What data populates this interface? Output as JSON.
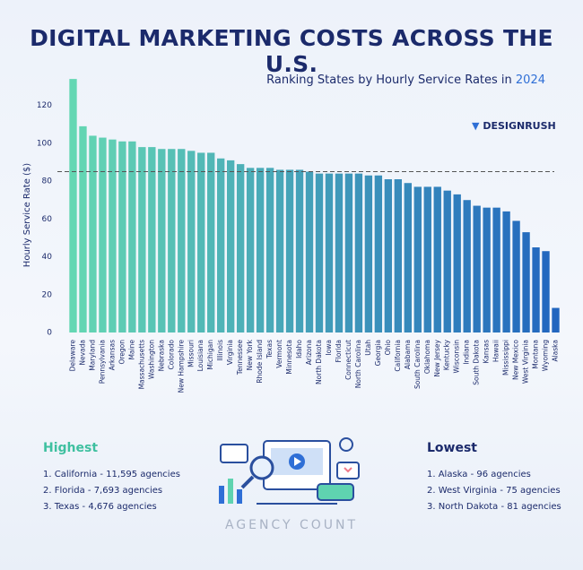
{
  "chart_data": {
    "type": "bar",
    "title": "DIGITAL MARKETING COSTS ACROSS THE U.S.",
    "subtitle": "Ranking States by Hourly Service Rates in",
    "subtitle_year": "2024",
    "y_label": "Hourly Service Rate ($)",
    "categories": [
      "Delaware",
      "Nevada",
      "Maryland",
      "Pennsylvania",
      "Arkansas",
      "Oregon",
      "Maine",
      "Massachusetts",
      "Washington",
      "Nebraska",
      "Colorado",
      "New Hampshire",
      "Missouri",
      "Louisiana",
      "Michigan",
      "Illinois",
      "Virginia",
      "Tennessee",
      "New York",
      "Rhode Island",
      "Texas",
      "Vermont",
      "Minnesota",
      "Idaho",
      "Arizona",
      "North Dakota",
      "Iowa",
      "Florida",
      "Connecticut",
      "North Carolina",
      "Utah",
      "Georgia",
      "Ohio",
      "California",
      "Alabama",
      "South Carolina",
      "Oklahoma",
      "New Jersey",
      "Kentucky",
      "Wisconsin",
      "Indiana",
      "South Dakota",
      "Kansas",
      "Hawaii",
      "Mississippi",
      "New Mexico",
      "West Virginia",
      "Montana",
      "Wyoming",
      "Alaska"
    ],
    "values": [
      134,
      109,
      104,
      103,
      102,
      101,
      101,
      98,
      98,
      97,
      97,
      97,
      96,
      95,
      95,
      92,
      91,
      89,
      87,
      87,
      87,
      86,
      86,
      86,
      85,
      84,
      84,
      84,
      84,
      84,
      83,
      83,
      81,
      81,
      79,
      77,
      77,
      77,
      75,
      73,
      70,
      67,
      66,
      66,
      64,
      59,
      53,
      45,
      43,
      13
    ],
    "color_gradient": [
      "#64d7b3",
      "#2266bf"
    ],
    "reference_line": 85,
    "ylim": [
      0,
      135
    ],
    "yticks": [
      0,
      20,
      40,
      60,
      80,
      100,
      120
    ]
  },
  "logo": "DESIGNRUSH",
  "highest": {
    "title": "Highest",
    "items": [
      "1. California - 11,595 agencies",
      "2. Florida - 7,693 agencies",
      "3. Texas - 4,676 agencies"
    ]
  },
  "lowest": {
    "title": "Lowest",
    "items": [
      "1. Alaska - 96 agencies",
      "2. West Virginia - 75 agencies",
      "3. North Dakota - 81 agencies"
    ]
  },
  "footer_label": "AGENCY COUNT"
}
